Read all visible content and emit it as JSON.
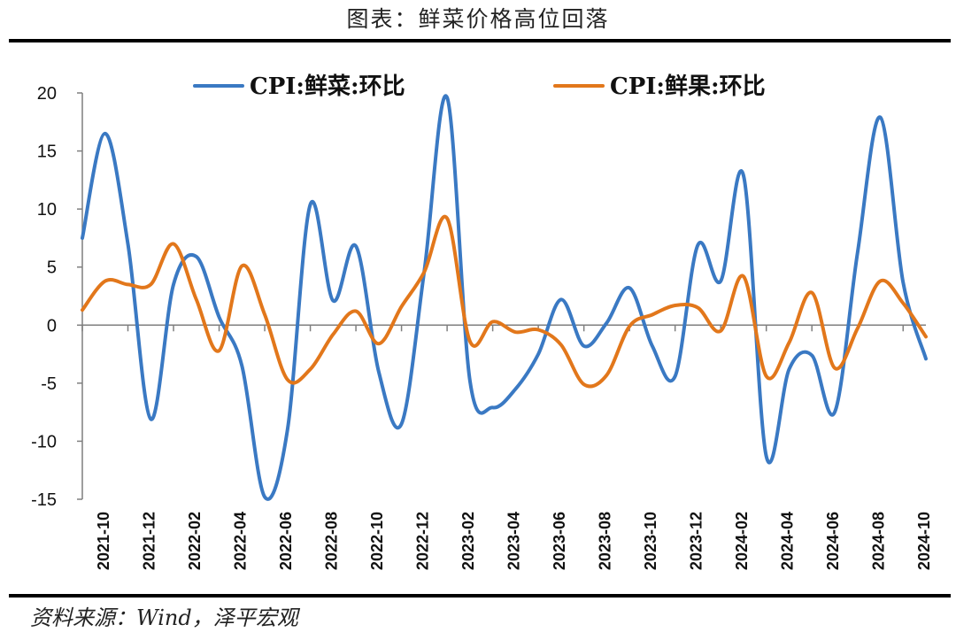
{
  "figure": {
    "title": "图表：鲜菜价格高位回落",
    "source": "资料来源：Wind，泽平宏观"
  },
  "colors": {
    "vegetables": "#3a79c3",
    "fruits": "#e2771b",
    "axis": "#7f7f7f"
  },
  "chart_data": {
    "type": "line",
    "title": "",
    "xlabel": "",
    "ylabel": "",
    "ylim": [
      -15,
      20
    ],
    "yticks": [
      20,
      15,
      10,
      5,
      0,
      -5,
      -10,
      -15
    ],
    "grid": false,
    "legend_position": "top",
    "x": [
      "2021-09",
      "2021-10",
      "2021-11",
      "2021-12",
      "2022-01",
      "2022-02",
      "2022-03",
      "2022-04",
      "2022-05",
      "2022-06",
      "2022-07",
      "2022-08",
      "2022-09",
      "2022-10",
      "2022-11",
      "2022-12",
      "2023-01",
      "2023-02",
      "2023-03",
      "2023-04",
      "2023-05",
      "2023-06",
      "2023-07",
      "2023-08",
      "2023-09",
      "2023-10",
      "2023-11",
      "2023-12",
      "2024-01",
      "2024-02",
      "2024-03",
      "2024-04",
      "2024-05",
      "2024-06",
      "2024-07",
      "2024-08",
      "2024-09",
      "2024-10"
    ],
    "x_tick_labels": [
      "2021-10",
      "2021-12",
      "2022-02",
      "2022-04",
      "2022-06",
      "2022-08",
      "2022-10",
      "2022-12",
      "2023-02",
      "2023-04",
      "2023-06",
      "2023-08",
      "2023-10",
      "2023-12",
      "2024-02",
      "2024-04",
      "2024-06",
      "2024-08",
      "2024-10"
    ],
    "series": [
      {
        "name": "CPI:鲜菜:环比",
        "color": "#3a79c3",
        "values": [
          7.5,
          16.5,
          7.0,
          -8.1,
          3.5,
          5.9,
          0.7,
          -3.5,
          -14.8,
          -9.0,
          10.4,
          2.1,
          6.8,
          -4.0,
          -8.5,
          4.7,
          19.6,
          -4.8,
          -7.1,
          -5.5,
          -2.5,
          2.2,
          -1.8,
          0.2,
          3.2,
          -1.8,
          -4.4,
          6.9,
          3.8,
          12.9,
          -11.3,
          -3.8,
          -2.6,
          -7.5,
          6.2,
          17.9,
          3.7,
          -2.9
        ]
      },
      {
        "name": "CPI:鲜果:环比",
        "color": "#e2771b",
        "values": [
          1.3,
          3.8,
          3.5,
          3.5,
          7.0,
          2.2,
          -2.2,
          5.1,
          0.9,
          -4.7,
          -3.8,
          -0.8,
          1.2,
          -1.6,
          1.6,
          4.6,
          9.2,
          -1.4,
          0.3,
          -0.6,
          -0.4,
          -1.7,
          -5.1,
          -4.3,
          -0.1,
          0.9,
          1.7,
          1.5,
          -0.5,
          4.2,
          -4.4,
          -1.5,
          2.8,
          -3.7,
          -0.3,
          3.8,
          1.9,
          -1.0
        ]
      }
    ]
  }
}
